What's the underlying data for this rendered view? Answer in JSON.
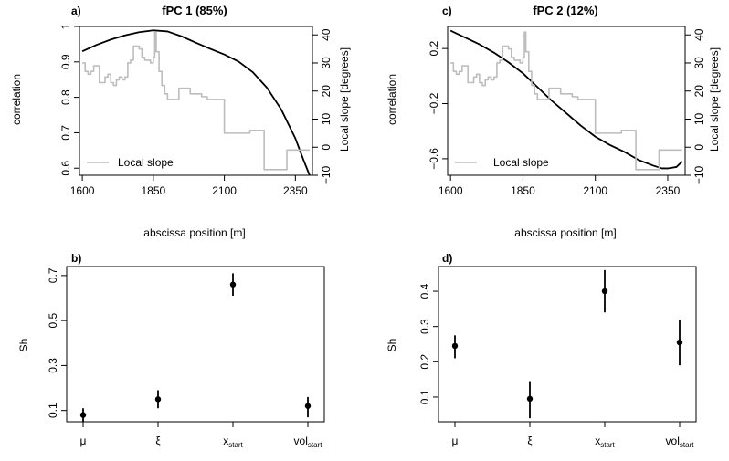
{
  "figure": {
    "panels": [
      {
        "id": "a",
        "panel_label": "a)",
        "title": "fPC 1 (85%)",
        "xlabel": "abscissa position [m]",
        "ylabel": "correlation",
        "y2label": "Local slope [degrees]",
        "legend_label": "Local slope"
      },
      {
        "id": "c",
        "panel_label": "c)",
        "title": "fPC 2 (12%)",
        "xlabel": "abscissa position [m]",
        "ylabel": "correlation",
        "y2label": "Local slope [degrees]",
        "legend_label": "Local slope"
      },
      {
        "id": "b",
        "panel_label": "b)",
        "ylabel": "Sh"
      },
      {
        "id": "d",
        "panel_label": "d)",
        "ylabel": "Sh"
      }
    ]
  },
  "chart_data": [
    {
      "type": "line",
      "panel": "a",
      "title": "fPC 1 (85%)",
      "xlabel": "abscissa position [m]",
      "ylabel": "correlation",
      "y2label": "Local slope [degrees]",
      "xlim": [
        1590,
        2410
      ],
      "ylim": [
        0.58,
        1.0
      ],
      "y2lim": [
        -10,
        43
      ],
      "xticks": [
        1600,
        1850,
        2100,
        2350
      ],
      "yticks": [
        0.6,
        0.7,
        0.8,
        0.9,
        1.0
      ],
      "y2ticks": [
        -10,
        0,
        10,
        20,
        30,
        40
      ],
      "legend": {
        "position": "bottom-left",
        "entries": [
          "Local slope"
        ]
      },
      "series": [
        {
          "axis": "left",
          "color": "#000000",
          "x": [
            1600,
            1650,
            1700,
            1750,
            1800,
            1850,
            1900,
            1950,
            2000,
            2050,
            2100,
            2150,
            2200,
            2250,
            2300,
            2350,
            2380,
            2400
          ],
          "y": [
            0.93,
            0.948,
            0.963,
            0.975,
            0.984,
            0.989,
            0.986,
            0.972,
            0.954,
            0.937,
            0.921,
            0.901,
            0.871,
            0.827,
            0.766,
            0.684,
            0.62,
            0.58
          ]
        },
        {
          "axis": "right",
          "name": "Local slope",
          "color": "#bdbdbd",
          "x": [
            1600,
            1610,
            1620,
            1630,
            1640,
            1650,
            1660,
            1670,
            1680,
            1690,
            1700,
            1710,
            1720,
            1730,
            1740,
            1750,
            1760,
            1770,
            1780,
            1790,
            1800,
            1810,
            1820,
            1830,
            1840,
            1850,
            1855,
            1860,
            1870,
            1880,
            1890,
            1900,
            1920,
            1940,
            1960,
            1980,
            2000,
            2020,
            2040,
            2060,
            2080,
            2100,
            2130,
            2160,
            2190,
            2220,
            2240,
            2260,
            2280,
            2300,
            2320,
            2340,
            2360,
            2380,
            2400
          ],
          "y": [
            30,
            27,
            26,
            27,
            29,
            29,
            23,
            23,
            25,
            26,
            23,
            22,
            24,
            25,
            24,
            25,
            30,
            31,
            36,
            36,
            35,
            32,
            31,
            31,
            30,
            32,
            41,
            34,
            27,
            22,
            19,
            17,
            17,
            21,
            21,
            19,
            19,
            18,
            17,
            17,
            17,
            5,
            5,
            5,
            6,
            6,
            -8,
            -8,
            -8,
            -8,
            -1,
            -1,
            -1,
            -1,
            -1
          ]
        }
      ]
    },
    {
      "type": "line",
      "panel": "c",
      "title": "fPC 2 (12%)",
      "xlabel": "abscissa position [m]",
      "ylabel": "correlation",
      "y2label": "Local slope [degrees]",
      "xlim": [
        1590,
        2410
      ],
      "ylim": [
        -0.72,
        0.36
      ],
      "y2lim": [
        -10,
        43
      ],
      "xticks": [
        1600,
        1850,
        2100,
        2350
      ],
      "yticks": [
        -0.6,
        -0.2,
        0.2
      ],
      "y2ticks": [
        -10,
        0,
        10,
        20,
        30,
        40
      ],
      "legend": {
        "position": "bottom-left",
        "entries": [
          "Local slope"
        ]
      },
      "series": [
        {
          "axis": "left",
          "color": "#000000",
          "x": [
            1600,
            1650,
            1700,
            1750,
            1800,
            1850,
            1900,
            1950,
            2000,
            2050,
            2100,
            2150,
            2200,
            2250,
            2300,
            2330,
            2350,
            2380,
            2400
          ],
          "y": [
            0.33,
            0.28,
            0.23,
            0.17,
            0.1,
            0.02,
            -0.08,
            -0.18,
            -0.27,
            -0.36,
            -0.44,
            -0.5,
            -0.55,
            -0.61,
            -0.65,
            -0.67,
            -0.67,
            -0.66,
            -0.62
          ]
        },
        {
          "axis": "right",
          "name": "Local slope",
          "color": "#bdbdbd",
          "x": [
            1600,
            1610,
            1620,
            1630,
            1640,
            1650,
            1660,
            1670,
            1680,
            1690,
            1700,
            1710,
            1720,
            1730,
            1740,
            1750,
            1760,
            1770,
            1780,
            1790,
            1800,
            1810,
            1820,
            1830,
            1840,
            1850,
            1855,
            1860,
            1870,
            1880,
            1890,
            1900,
            1920,
            1940,
            1960,
            1980,
            2000,
            2020,
            2040,
            2060,
            2080,
            2100,
            2130,
            2160,
            2190,
            2220,
            2240,
            2260,
            2280,
            2300,
            2320,
            2340,
            2360,
            2380,
            2400
          ],
          "y": [
            30,
            27,
            26,
            27,
            29,
            29,
            23,
            23,
            25,
            26,
            23,
            22,
            24,
            25,
            24,
            25,
            30,
            31,
            36,
            36,
            35,
            32,
            31,
            31,
            30,
            32,
            41,
            34,
            27,
            22,
            19,
            17,
            17,
            21,
            21,
            19,
            19,
            18,
            17,
            17,
            17,
            5,
            5,
            5,
            6,
            6,
            -8,
            -8,
            -8,
            -8,
            -1,
            -1,
            -1,
            -1,
            -1
          ]
        }
      ]
    },
    {
      "type": "scatter",
      "panel": "b",
      "ylabel": "Sh",
      "categories": [
        "μ",
        "ξ",
        "x_start",
        "vol_start"
      ],
      "category_labels": [
        {
          "base": "μ",
          "sub": ""
        },
        {
          "base": "ξ",
          "sub": ""
        },
        {
          "base": "x",
          "sub": "start"
        },
        {
          "base": "vol",
          "sub": "start"
        }
      ],
      "ylim": [
        0.05,
        0.74
      ],
      "yticks": [
        0.1,
        0.3,
        0.5,
        0.7
      ],
      "values": [
        0.08,
        0.15,
        0.66,
        0.12
      ],
      "errors_low": [
        0.05,
        0.11,
        0.61,
        0.07
      ],
      "errors_high": [
        0.11,
        0.19,
        0.71,
        0.16
      ]
    },
    {
      "type": "scatter",
      "panel": "d",
      "ylabel": "Sh",
      "categories": [
        "μ",
        "ξ",
        "x_start",
        "vol_start"
      ],
      "category_labels": [
        {
          "base": "μ",
          "sub": ""
        },
        {
          "base": "ξ",
          "sub": ""
        },
        {
          "base": "x",
          "sub": "start"
        },
        {
          "base": "vol",
          "sub": "start"
        }
      ],
      "ylim": [
        0.03,
        0.47
      ],
      "yticks": [
        0.1,
        0.2,
        0.3,
        0.4
      ],
      "values": [
        0.245,
        0.095,
        0.4,
        0.255
      ],
      "errors_low": [
        0.21,
        0.04,
        0.34,
        0.19
      ],
      "errors_high": [
        0.275,
        0.145,
        0.46,
        0.32
      ]
    }
  ]
}
